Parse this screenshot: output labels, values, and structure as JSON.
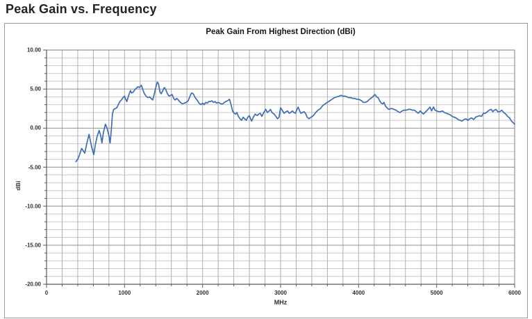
{
  "page": {
    "title": "Peak Gain vs. Frequency"
  },
  "chart": {
    "title": "Peak Gain From Highest Direction (dBi)",
    "x_axis_label": "MHz",
    "y_axis_label": "dBi"
  },
  "colors": {
    "line": "#3e6db5",
    "grid_minor": "#c9c9c9",
    "grid_vertical": "#aeaeae",
    "grid_major": "#8f8f8f",
    "axis": "#5a5a5a",
    "plot_border": "#7d7d7d"
  },
  "chart_data": {
    "type": "line",
    "title": "Peak Gain From Highest Direction (dBi)",
    "xlabel": "MHz",
    "ylabel": "dBi",
    "xlim": [
      0,
      6000
    ],
    "ylim": [
      -20,
      10
    ],
    "x_minor_step": 200,
    "y_minor_step": 1,
    "x_major_step": 1000,
    "y_major_step": 5,
    "grid": "major+minor",
    "legend": "none",
    "x_tick_labels": [
      "0",
      "1000",
      "2000",
      "3000",
      "4000",
      "5000",
      "6000"
    ],
    "x_tick_values": [
      0,
      1000,
      2000,
      3000,
      4000,
      5000,
      6000
    ],
    "y_tick_labels": [
      "10.00",
      "5.00",
      "0.00",
      "-5.00",
      "-10.00",
      "-15.00",
      "-20.00"
    ],
    "y_tick_values": [
      10,
      5,
      0,
      -5,
      -10,
      -15,
      -20
    ],
    "series": [
      {
        "name": "Peak Gain From Highest Direction (dBi)",
        "points": [
          [
            375,
            -4.3
          ],
          [
            400,
            -4.0
          ],
          [
            420,
            -3.5
          ],
          [
            450,
            -2.6
          ],
          [
            470,
            -2.9
          ],
          [
            490,
            -3.2
          ],
          [
            515,
            -2.0
          ],
          [
            545,
            -0.8
          ],
          [
            560,
            -1.5
          ],
          [
            580,
            -2.5
          ],
          [
            605,
            -3.4
          ],
          [
            625,
            -2.2
          ],
          [
            650,
            -1.0
          ],
          [
            675,
            -0.3
          ],
          [
            695,
            -1.0
          ],
          [
            710,
            -1.9
          ],
          [
            730,
            -0.5
          ],
          [
            755,
            0.5
          ],
          [
            775,
            0.0
          ],
          [
            800,
            -1.0
          ],
          [
            815,
            -1.9
          ],
          [
            830,
            -0.3
          ],
          [
            845,
            1.8
          ],
          [
            860,
            2.4
          ],
          [
            880,
            2.5
          ],
          [
            900,
            2.6
          ],
          [
            920,
            3.0
          ],
          [
            940,
            3.4
          ],
          [
            960,
            3.6
          ],
          [
            980,
            3.9
          ],
          [
            1000,
            4.1
          ],
          [
            1015,
            3.7
          ],
          [
            1030,
            3.4
          ],
          [
            1050,
            4.1
          ],
          [
            1075,
            4.8
          ],
          [
            1090,
            4.5
          ],
          [
            1110,
            4.6
          ],
          [
            1130,
            4.9
          ],
          [
            1150,
            5.1
          ],
          [
            1170,
            5.3
          ],
          [
            1190,
            5.2
          ],
          [
            1215,
            5.5
          ],
          [
            1235,
            4.9
          ],
          [
            1255,
            4.4
          ],
          [
            1275,
            4.1
          ],
          [
            1300,
            3.9
          ],
          [
            1320,
            4.0
          ],
          [
            1340,
            3.8
          ],
          [
            1360,
            3.6
          ],
          [
            1380,
            4.3
          ],
          [
            1400,
            5.2
          ],
          [
            1420,
            5.9
          ],
          [
            1435,
            5.7
          ],
          [
            1455,
            4.6
          ],
          [
            1470,
            4.4
          ],
          [
            1490,
            4.8
          ],
          [
            1510,
            5.2
          ],
          [
            1530,
            4.9
          ],
          [
            1550,
            4.4
          ],
          [
            1570,
            4.1
          ],
          [
            1590,
            4.2
          ],
          [
            1610,
            4.3
          ],
          [
            1630,
            3.8
          ],
          [
            1650,
            3.6
          ],
          [
            1670,
            3.8
          ],
          [
            1690,
            3.6
          ],
          [
            1715,
            3.3
          ],
          [
            1740,
            3.1
          ],
          [
            1765,
            3.2
          ],
          [
            1790,
            3.3
          ],
          [
            1815,
            3.5
          ],
          [
            1840,
            4.1
          ],
          [
            1860,
            4.5
          ],
          [
            1880,
            4.4
          ],
          [
            1905,
            3.9
          ],
          [
            1930,
            3.6
          ],
          [
            1955,
            3.2
          ],
          [
            1980,
            3.0
          ],
          [
            2000,
            3.2
          ],
          [
            2020,
            3.0
          ],
          [
            2040,
            3.3
          ],
          [
            2060,
            3.2
          ],
          [
            2080,
            3.4
          ],
          [
            2100,
            3.4
          ],
          [
            2120,
            3.5
          ],
          [
            2140,
            3.3
          ],
          [
            2160,
            3.4
          ],
          [
            2180,
            3.2
          ],
          [
            2200,
            3.3
          ],
          [
            2220,
            3.2
          ],
          [
            2240,
            3.1
          ],
          [
            2260,
            3.1
          ],
          [
            2280,
            3.3
          ],
          [
            2300,
            3.4
          ],
          [
            2320,
            3.5
          ],
          [
            2345,
            3.7
          ],
          [
            2365,
            3.0
          ],
          [
            2385,
            2.2
          ],
          [
            2405,
            1.9
          ],
          [
            2425,
            1.8
          ],
          [
            2440,
            2.0
          ],
          [
            2460,
            1.5
          ],
          [
            2480,
            1.2
          ],
          [
            2500,
            1.0
          ],
          [
            2520,
            1.4
          ],
          [
            2540,
            1.2
          ],
          [
            2560,
            1.0
          ],
          [
            2580,
            1.4
          ],
          [
            2600,
            1.6
          ],
          [
            2615,
            1.2
          ],
          [
            2630,
            0.9
          ],
          [
            2650,
            1.4
          ],
          [
            2675,
            1.8
          ],
          [
            2700,
            1.6
          ],
          [
            2720,
            1.8
          ],
          [
            2740,
            1.9
          ],
          [
            2760,
            1.5
          ],
          [
            2785,
            2.0
          ],
          [
            2810,
            2.4
          ],
          [
            2830,
            2.0
          ],
          [
            2855,
            2.2
          ],
          [
            2870,
            2.4
          ],
          [
            2890,
            2.0
          ],
          [
            2915,
            1.8
          ],
          [
            2940,
            1.5
          ],
          [
            2960,
            1.2
          ],
          [
            2980,
            1.4
          ],
          [
            3000,
            2.6
          ],
          [
            3020,
            2.3
          ],
          [
            3045,
            1.9
          ],
          [
            3070,
            2.1
          ],
          [
            3090,
            2.2
          ],
          [
            3110,
            1.9
          ],
          [
            3130,
            2.0
          ],
          [
            3150,
            2.2
          ],
          [
            3170,
            2.0
          ],
          [
            3190,
            1.9
          ],
          [
            3210,
            2.4
          ],
          [
            3225,
            2.7
          ],
          [
            3245,
            2.2
          ],
          [
            3260,
            1.9
          ],
          [
            3280,
            2.0
          ],
          [
            3300,
            2.1
          ],
          [
            3320,
            1.9
          ],
          [
            3340,
            1.4
          ],
          [
            3365,
            1.2
          ],
          [
            3390,
            1.4
          ],
          [
            3420,
            1.6
          ],
          [
            3450,
            2.0
          ],
          [
            3480,
            2.3
          ],
          [
            3510,
            2.5
          ],
          [
            3540,
            2.9
          ],
          [
            3570,
            3.1
          ],
          [
            3600,
            3.3
          ],
          [
            3630,
            3.5
          ],
          [
            3660,
            3.7
          ],
          [
            3690,
            3.9
          ],
          [
            3720,
            4.0
          ],
          [
            3750,
            4.1
          ],
          [
            3775,
            4.2
          ],
          [
            3800,
            4.1
          ],
          [
            3825,
            4.1
          ],
          [
            3850,
            4.0
          ],
          [
            3875,
            3.9
          ],
          [
            3900,
            3.9
          ],
          [
            3925,
            3.8
          ],
          [
            3950,
            3.8
          ],
          [
            3975,
            3.7
          ],
          [
            4000,
            3.7
          ],
          [
            4020,
            3.6
          ],
          [
            4040,
            3.5
          ],
          [
            4060,
            3.3
          ],
          [
            4085,
            3.3
          ],
          [
            4110,
            3.4
          ],
          [
            4130,
            3.6
          ],
          [
            4155,
            3.8
          ],
          [
            4180,
            4.0
          ],
          [
            4210,
            4.3
          ],
          [
            4230,
            4.0
          ],
          [
            4250,
            3.9
          ],
          [
            4270,
            3.5
          ],
          [
            4290,
            3.2
          ],
          [
            4310,
            3.1
          ],
          [
            4325,
            3.3
          ],
          [
            4345,
            2.8
          ],
          [
            4365,
            2.6
          ],
          [
            4385,
            2.4
          ],
          [
            4410,
            2.5
          ],
          [
            4430,
            2.5
          ],
          [
            4455,
            2.4
          ],
          [
            4480,
            2.3
          ],
          [
            4505,
            2.1
          ],
          [
            4530,
            2.0
          ],
          [
            4560,
            2.2
          ],
          [
            4585,
            2.3
          ],
          [
            4610,
            2.3
          ],
          [
            4640,
            2.4
          ],
          [
            4665,
            2.4
          ],
          [
            4690,
            2.3
          ],
          [
            4715,
            2.3
          ],
          [
            4740,
            2.1
          ],
          [
            4765,
            1.9
          ],
          [
            4790,
            2.2
          ],
          [
            4810,
            2.0
          ],
          [
            4830,
            1.8
          ],
          [
            4850,
            2.0
          ],
          [
            4870,
            2.2
          ],
          [
            4890,
            2.4
          ],
          [
            4915,
            2.7
          ],
          [
            4935,
            2.2
          ],
          [
            4960,
            2.7
          ],
          [
            4980,
            2.3
          ],
          [
            5000,
            2.2
          ],
          [
            5025,
            2.1
          ],
          [
            5050,
            2.1
          ],
          [
            5075,
            2.2
          ],
          [
            5100,
            2.0
          ],
          [
            5125,
            1.9
          ],
          [
            5150,
            1.8
          ],
          [
            5175,
            1.7
          ],
          [
            5200,
            1.5
          ],
          [
            5225,
            1.4
          ],
          [
            5250,
            1.3
          ],
          [
            5275,
            1.1
          ],
          [
            5300,
            1.0
          ],
          [
            5325,
            0.9
          ],
          [
            5350,
            1.1
          ],
          [
            5375,
            1.2
          ],
          [
            5400,
            1.0
          ],
          [
            5425,
            1.2
          ],
          [
            5450,
            1.3
          ],
          [
            5475,
            1.1
          ],
          [
            5500,
            1.4
          ],
          [
            5525,
            1.5
          ],
          [
            5550,
            1.6
          ],
          [
            5575,
            1.5
          ],
          [
            5600,
            1.9
          ],
          [
            5625,
            1.9
          ],
          [
            5650,
            2.1
          ],
          [
            5675,
            2.3
          ],
          [
            5700,
            2.4
          ],
          [
            5720,
            2.1
          ],
          [
            5740,
            2.3
          ],
          [
            5760,
            2.4
          ],
          [
            5785,
            2.1
          ],
          [
            5810,
            2.1
          ],
          [
            5835,
            2.3
          ],
          [
            5860,
            2.0
          ],
          [
            5885,
            1.8
          ],
          [
            5910,
            1.5
          ],
          [
            5935,
            1.3
          ],
          [
            5960,
            0.9
          ],
          [
            5980,
            0.7
          ],
          [
            6000,
            0.5
          ]
        ]
      }
    ]
  }
}
